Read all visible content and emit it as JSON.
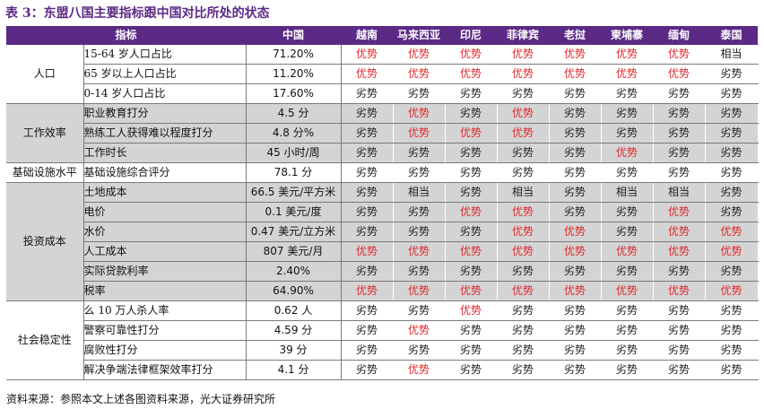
{
  "title": "表 3：东盟八国主要指标跟中国对比所处的状态",
  "header": {
    "indicator": "指标",
    "china": "中国",
    "countries": [
      "越南",
      "马来西亚",
      "印尼",
      "菲律宾",
      "老挝",
      "柬埔寨",
      "缅甸",
      "泰国"
    ]
  },
  "groups": [
    {
      "category": "人口",
      "rows": [
        {
          "indicator": "15-64 岁人口占比",
          "china": "71.20%",
          "status": [
            "优势",
            "优势",
            "优势",
            "优势",
            "优势",
            "优势",
            "优势",
            "相当"
          ]
        },
        {
          "indicator": "65 岁以上人口占比",
          "china": "11.20%",
          "status": [
            "优势",
            "优势",
            "优势",
            "优势",
            "优势",
            "优势",
            "优势",
            "劣势"
          ]
        },
        {
          "indicator": "0-14 岁人口占比",
          "china": "17.60%",
          "status": [
            "劣势",
            "劣势",
            "劣势",
            "劣势",
            "劣势",
            "劣势",
            "劣势",
            "劣势"
          ]
        }
      ]
    },
    {
      "category": "工作效率",
      "rows": [
        {
          "indicator": "职业教育打分",
          "china": "4.5 分",
          "status": [
            "劣势",
            "优势",
            "劣势",
            "优势",
            "劣势",
            "劣势",
            "劣势",
            "劣势"
          ]
        },
        {
          "indicator": "熟练工人获得难以程度打分",
          "china": "4.8 分%",
          "status": [
            "劣势",
            "优势",
            "优势",
            "优势",
            "劣势",
            "劣势",
            "劣势",
            "劣势"
          ]
        },
        {
          "indicator": "工作时长",
          "china": "45 小时/周",
          "status": [
            "劣势",
            "劣势",
            "劣势",
            "劣势",
            "劣势",
            "优势",
            "劣势",
            "劣势"
          ]
        }
      ]
    },
    {
      "category": "基础设施水平",
      "rows": [
        {
          "indicator": "基础设施综合评分",
          "china": "78.1 分",
          "status": [
            "劣势",
            "劣势",
            "劣势",
            "劣势",
            "劣势",
            "劣势",
            "劣势",
            "劣势"
          ]
        }
      ]
    },
    {
      "category": "投资成本",
      "rows": [
        {
          "indicator": "土地成本",
          "china": "66.5 美元/平方米",
          "status": [
            "劣势",
            "相当",
            "劣势",
            "相当",
            "劣势",
            "相当",
            "相当",
            "劣势"
          ]
        },
        {
          "indicator": "电价",
          "china": "0.1 美元/度",
          "status": [
            "劣势",
            "劣势",
            "优势",
            "优势",
            "劣势",
            "劣势",
            "优势",
            "劣势"
          ]
        },
        {
          "indicator": "水价",
          "china": "0.47 美元/立方米",
          "status": [
            "劣势",
            "劣势",
            "劣势",
            "优势",
            "优势",
            "劣势",
            "优势",
            "优势"
          ]
        },
        {
          "indicator": "人工成本",
          "china": "807 美元/月",
          "status": [
            "优势",
            "优势",
            "优势",
            "优势",
            "优势",
            "优势",
            "优势",
            "优势"
          ]
        },
        {
          "indicator": "实际贷款利率",
          "china": "2.40%",
          "status": [
            "劣势",
            "劣势",
            "劣势",
            "劣势",
            "劣势",
            "劣势",
            "劣势",
            "劣势"
          ]
        },
        {
          "indicator": "税率",
          "china": "64.90%",
          "status": [
            "优势",
            "优势",
            "优势",
            "优势",
            "优势",
            "优势",
            "优势",
            "优势"
          ]
        }
      ]
    },
    {
      "category": "社会稳定性",
      "rows": [
        {
          "indicator": "么 10 万人杀人率",
          "china": "0.62 人",
          "status": [
            "劣势",
            "劣势",
            "优势",
            "劣势",
            "劣势",
            "劣势",
            "劣势",
            "劣势"
          ]
        },
        {
          "indicator": "警察可靠性打分",
          "china": "4.59 分",
          "status": [
            "劣势",
            "优势",
            "劣势",
            "劣势",
            "劣势",
            "劣势",
            "劣势",
            "劣势"
          ]
        },
        {
          "indicator": "腐败性打分",
          "china": "39 分",
          "status": [
            "劣势",
            "劣势",
            "劣势",
            "劣势",
            "劣势",
            "劣势",
            "劣势",
            "劣势"
          ]
        },
        {
          "indicator": "解决争端法律框架效率打分",
          "china": "4.1 分",
          "status": [
            "劣势",
            "优势",
            "劣势",
            "劣势",
            "劣势",
            "劣势",
            "劣势",
            "劣势"
          ]
        }
      ]
    }
  ],
  "source": "资料来源：参照本文上述各图资料来源，光大证券研究所",
  "colors": {
    "header_bg": "#5b2a86",
    "title": "#5b2a86",
    "advantage": "#e3262a",
    "shade": "#d4d4d4"
  }
}
